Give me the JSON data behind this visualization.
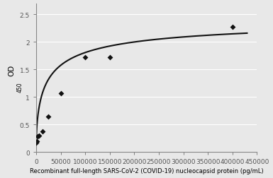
{
  "x_data_points": [
    0,
    1563,
    3125,
    6250,
    12500,
    25000,
    50000,
    100000,
    150000,
    400000
  ],
  "y_data_points": [
    0.17,
    0.19,
    0.28,
    0.3,
    0.38,
    0.65,
    1.07,
    1.72,
    1.72,
    2.27
  ],
  "xlabel": "Recombinant full-length SARS-CoV-2 (COVID-19) nucleocapsid protein (pg/mL)",
  "ylabel_main": "OD",
  "ylabel_sub": "450",
  "xlim": [
    0,
    450000
  ],
  "ylim": [
    0,
    2.7
  ],
  "xticks": [
    0,
    50000,
    100000,
    150000,
    200000,
    250000,
    300000,
    350000,
    400000,
    450000
  ],
  "xtick_labels": [
    "0",
    "50000",
    "100000",
    "150000",
    "200000",
    "250000",
    "300000",
    "350000",
    "400000",
    "450000"
  ],
  "yticks": [
    0,
    0.5,
    1.0,
    1.5,
    2.0,
    2.5
  ],
  "ytick_labels": [
    "0",
    "0.5",
    "1",
    "1.5",
    "2",
    "2.5"
  ],
  "line_color": "#111111",
  "marker_color": "#111111",
  "bg_color": "#e8e8e8",
  "plot_bg_color": "#e8e8e8",
  "grid_color": "#ffffff",
  "curve_color": "#111111",
  "spine_color": "#888888",
  "tick_color": "#555555",
  "xlabel_fontsize": 6.0,
  "ylabel_fontsize": 7.5,
  "tick_fontsize": 6.5,
  "marker_size": 16,
  "linewidth": 1.5
}
